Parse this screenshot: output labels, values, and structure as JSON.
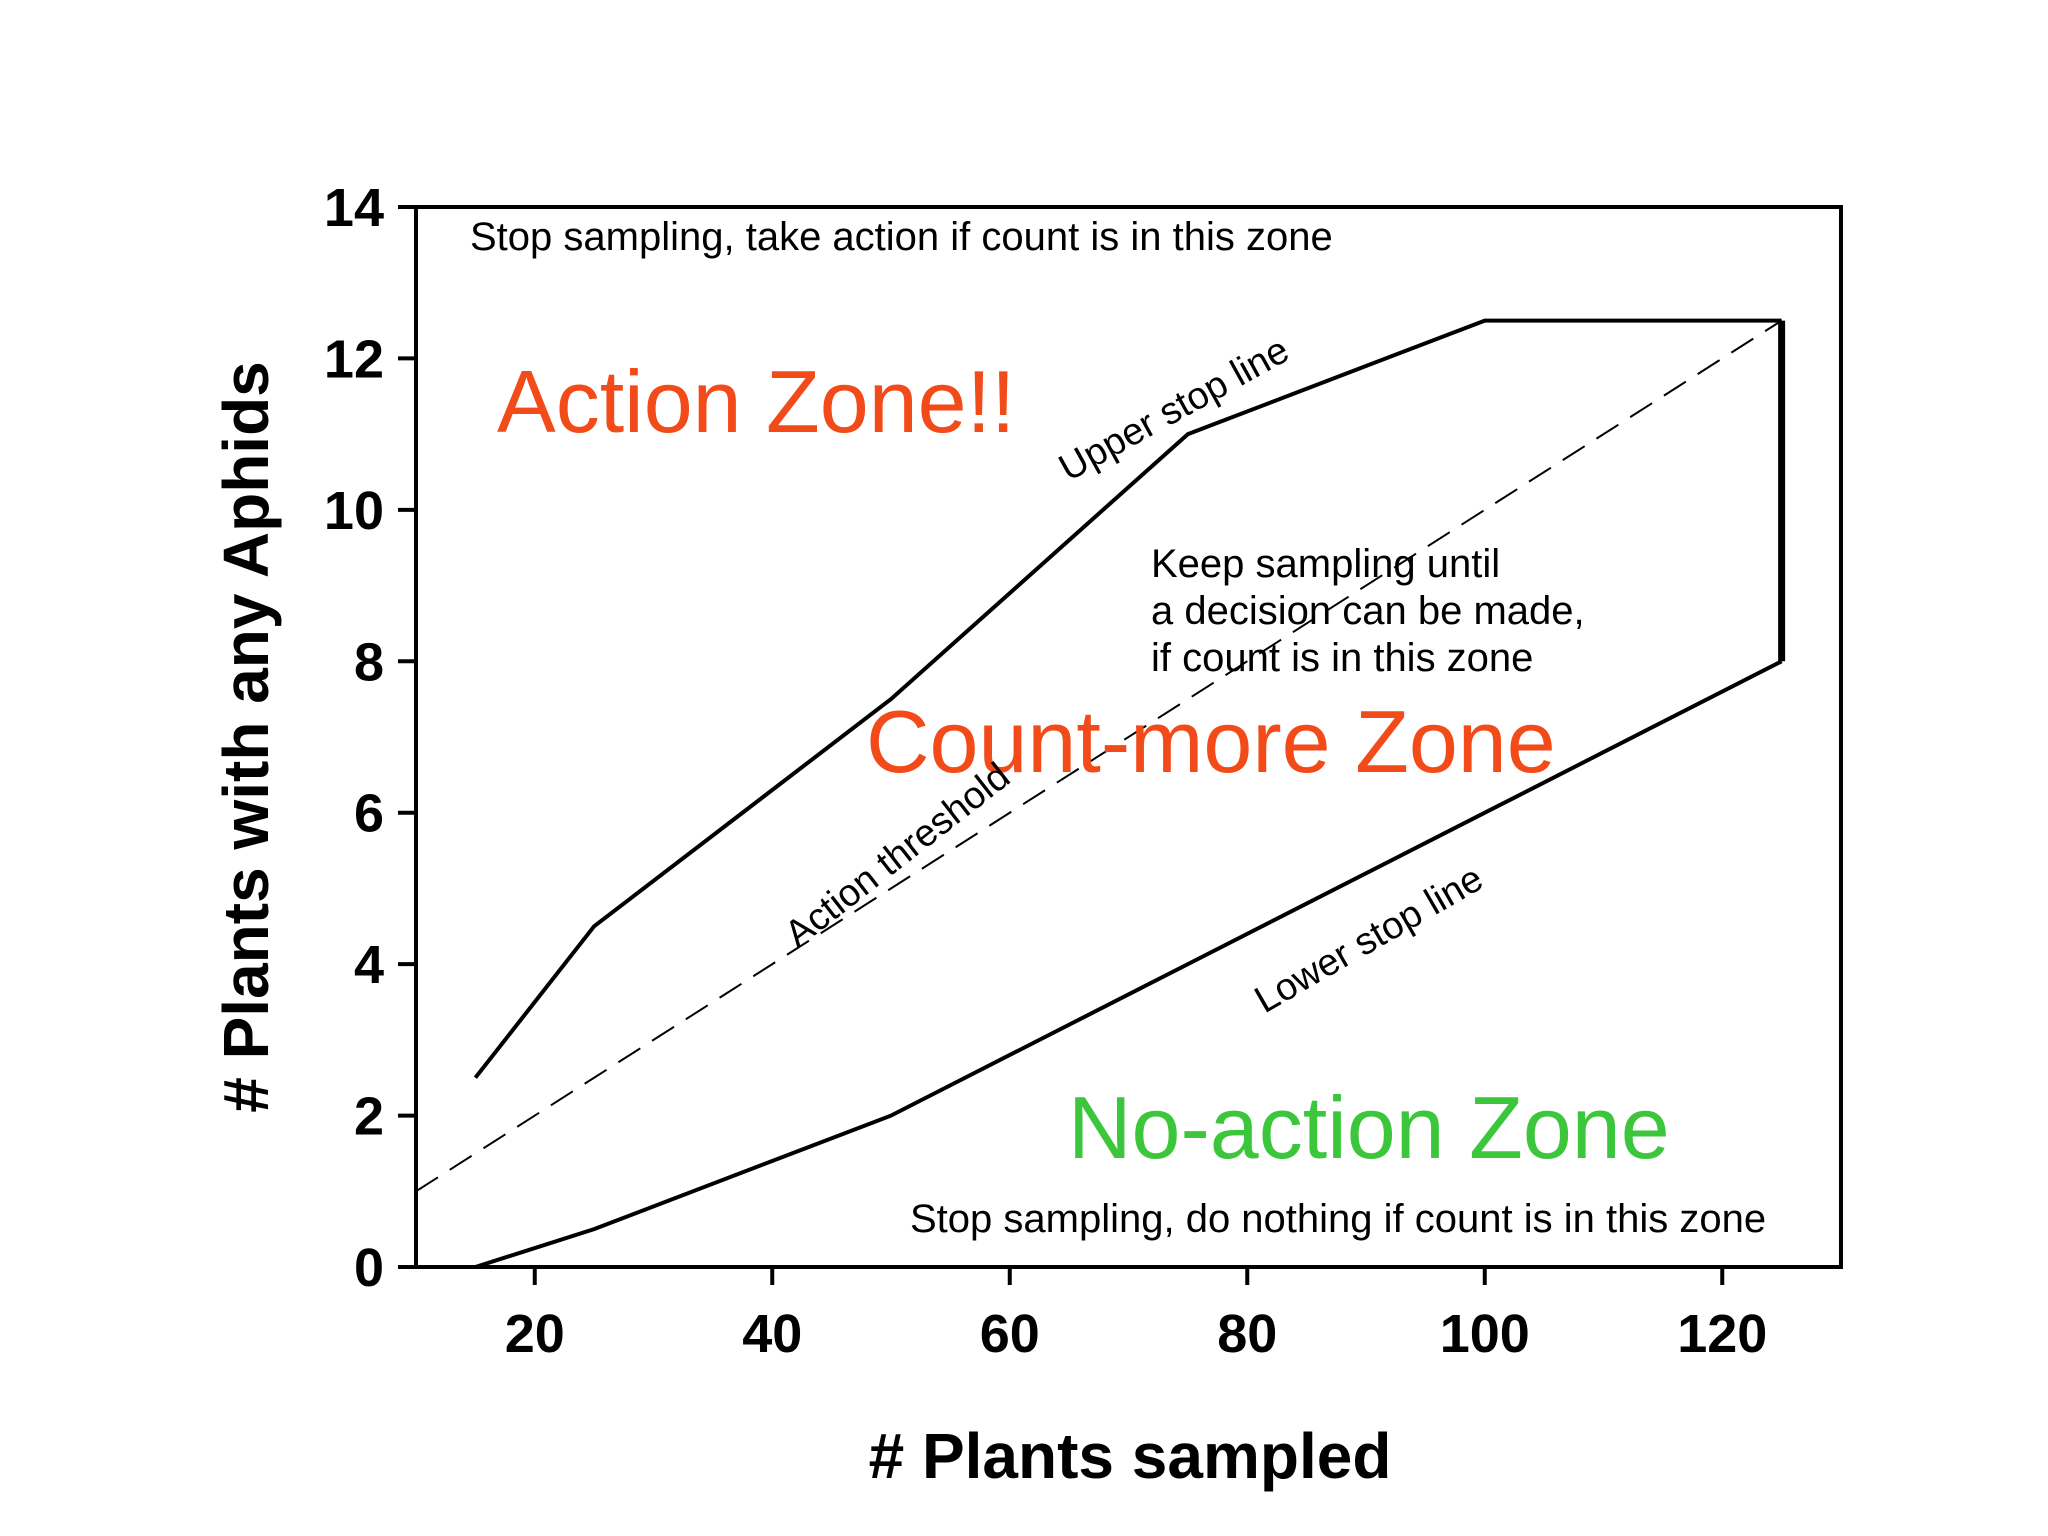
{
  "chart_data": {
    "type": "line",
    "xlabel": "# Plants sampled",
    "ylabel": "# Plants with any Aphids",
    "xlim": [
      10,
      130
    ],
    "ylim": [
      0,
      14
    ],
    "x_ticks": [
      20,
      40,
      60,
      80,
      100,
      120
    ],
    "y_ticks": [
      0,
      2,
      4,
      6,
      8,
      10,
      12,
      14
    ],
    "grid": false,
    "series": [
      {
        "name": "Upper stop line",
        "style": "solid",
        "x": [
          15,
          25,
          50,
          75,
          100,
          125
        ],
        "y": [
          2.5,
          4.5,
          7.5,
          11,
          12.5,
          12.5
        ]
      },
      {
        "name": "Action threshold",
        "style": "dashed",
        "x": [
          10,
          125
        ],
        "y": [
          1,
          12.5
        ]
      },
      {
        "name": "Lower stop line",
        "style": "solid",
        "x": [
          15,
          25,
          50,
          75,
          100,
          125
        ],
        "y": [
          0,
          0.5,
          2,
          4,
          6,
          8
        ]
      }
    ],
    "end_bar": {
      "x": 125,
      "y": [
        8,
        12.5
      ]
    },
    "annotations": {
      "top_note": "Stop sampling, take action if count is in this zone",
      "middle_note": [
        "Keep sampling until",
        "a decision can be made,",
        "if count is in this zone"
      ],
      "bottom_note": "Stop sampling, do nothing if count is in this zone",
      "action_zone": "Action Zone!!",
      "count_more_zone": "Count-more Zone",
      "no_action_zone": "No-action Zone"
    },
    "colors": {
      "action_zone": "#f24a18",
      "count_more_zone": "#f24a18",
      "no_action_zone": "#3cc63c",
      "lines": "#000000"
    }
  }
}
